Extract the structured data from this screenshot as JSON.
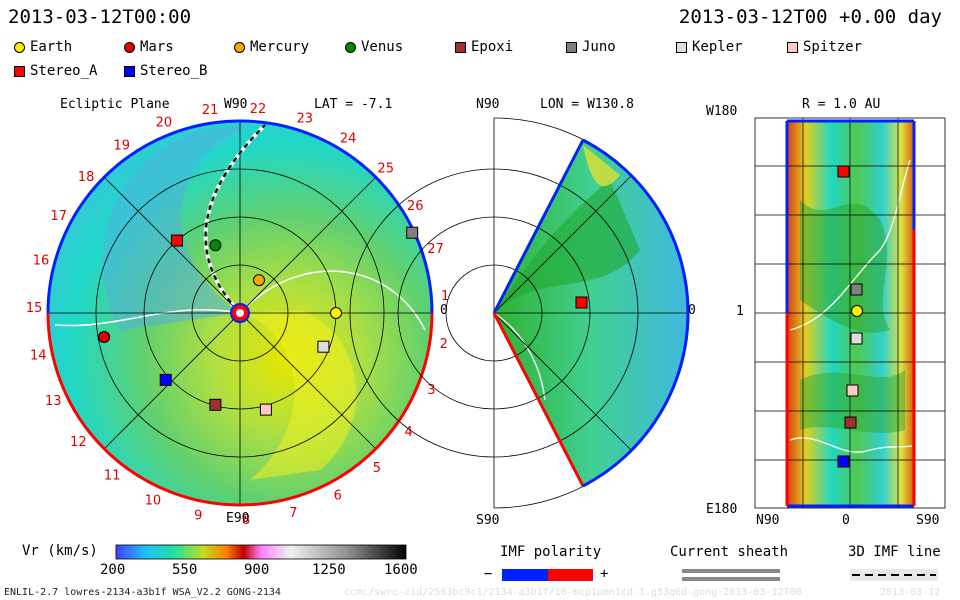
{
  "header": {
    "datetime": "2013-03-12T00:00",
    "elapsed": "2013-03-12T00 +0.00 day"
  },
  "legend": [
    {
      "label": "Earth",
      "shape": "circle",
      "color": "#ffee00"
    },
    {
      "label": "Mars",
      "shape": "circle",
      "color": "#e00000"
    },
    {
      "label": "Mercury",
      "shape": "circle",
      "color": "#ffa500"
    },
    {
      "label": "Venus",
      "shape": "circle",
      "color": "#008800"
    },
    {
      "label": "Epoxi",
      "shape": "square",
      "color": "#a03030"
    },
    {
      "label": "Juno",
      "shape": "square",
      "color": "#808080"
    },
    {
      "label": "Kepler",
      "shape": "square",
      "color": "#dddddd"
    },
    {
      "label": "Spitzer",
      "shape": "square",
      "color": "#ffc8c8"
    },
    {
      "label": "Stereo_A",
      "shape": "square",
      "color": "#ff0000"
    },
    {
      "label": "Stereo_B",
      "shape": "square",
      "color": "#0000ff"
    }
  ],
  "panels": {
    "ecliptic": {
      "title": "Ecliptic Plane",
      "top_label": "W90",
      "bottom_label": "E90",
      "lat": "LAT = -7.1",
      "zero": "0",
      "ticks": [
        "1",
        "2",
        "3",
        "4",
        "5",
        "6",
        "7",
        "8",
        "9",
        "10",
        "11",
        "12",
        "13",
        "14",
        "15",
        "16",
        "17",
        "18",
        "19",
        "20",
        "21",
        "22",
        "23",
        "24",
        "25",
        "26",
        "27"
      ]
    },
    "meridional": {
      "top": "N90",
      "bottom": "S90",
      "lon": "LON = W130.8",
      "zero": "0"
    },
    "radial": {
      "title": "R = 1.0 AU",
      "top": "W180",
      "mid": "1",
      "bottom": "E180",
      "x_left": "N90",
      "x_mid": "0",
      "x_right": "S90"
    }
  },
  "colorbar": {
    "label": "Vr (km/s)",
    "ticks": [
      "200",
      "550",
      "900",
      "1250",
      "1600"
    ]
  },
  "imf": {
    "label": "IMF polarity",
    "minus": "−",
    "plus": "+"
  },
  "sheath": {
    "label": "Current sheath"
  },
  "imf3d": {
    "label": "3D IMF line"
  },
  "footer": {
    "model": "ENLIL-2.7 lowres-2134-a3b1f WSA_V2.2 GONG-2134",
    "path": "ccmc/swrc-cid/2563bc9c1/2134-a3b1f/16-mcp1umn1cd-1.g53q6d-gong-2013-03-12T00",
    "stamp": "2013-03-12"
  },
  "chart_data": {
    "type": "heatmap",
    "quantity": "Vr (km/s)",
    "color_range": [
      200,
      1600
    ],
    "positions": [
      {
        "name": "Earth",
        "lon_deg": 0,
        "r_au": 0.96
      },
      {
        "name": "Mercury",
        "lon_deg": 60,
        "r_au": 0.38
      },
      {
        "name": "Venus",
        "lon_deg": 110,
        "r_au": 0.72
      },
      {
        "name": "Mars",
        "lon_deg": 190,
        "r_au": 1.38
      },
      {
        "name": "Epoxi",
        "lon_deg": 255,
        "r_au": 0.95
      },
      {
        "name": "Juno",
        "lon_deg": 25,
        "r_au": 1.9
      },
      {
        "name": "Kepler",
        "lon_deg": 338,
        "r_au": 0.9
      },
      {
        "name": "Spitzer",
        "lon_deg": 285,
        "r_au": 1.0
      },
      {
        "name": "Stereo_A",
        "lon_deg": 131,
        "r_au": 0.96
      },
      {
        "name": "Stereo_B",
        "lon_deg": 222,
        "r_au": 1.0
      }
    ]
  }
}
